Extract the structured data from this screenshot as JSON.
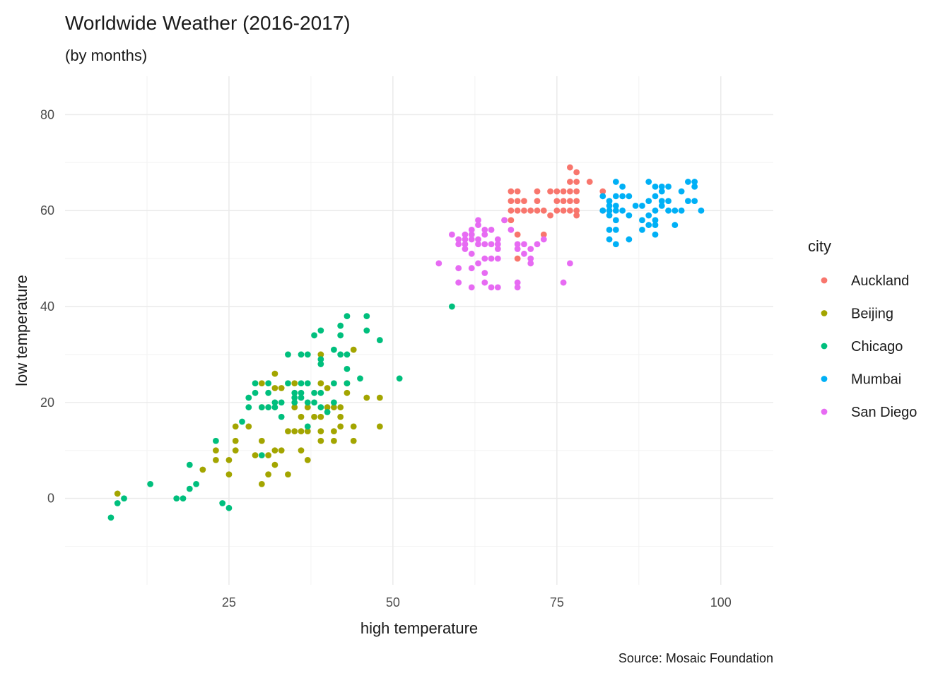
{
  "chart_data": {
    "type": "scatter",
    "title": "Worldwide Weather (2016-2017)",
    "subtitle": "(by months)",
    "caption": "Source: Mosaic Foundation",
    "xlabel": "high temperature",
    "ylabel": "low temperature",
    "xlim": [
      0,
      108
    ],
    "ylim": [
      -18,
      88
    ],
    "xticks": [
      25,
      50,
      75,
      100
    ],
    "yticks": [
      0,
      20,
      40,
      60,
      80
    ],
    "grid": true,
    "legend": {
      "title": "city",
      "position": "right"
    },
    "series": [
      {
        "name": "Auckland",
        "color": "#F8766D",
        "points": [
          [
            68,
            64
          ],
          [
            69,
            64
          ],
          [
            68,
            62
          ],
          [
            69,
            62
          ],
          [
            70,
            62
          ],
          [
            72,
            62
          ],
          [
            75,
            62
          ],
          [
            76,
            62
          ],
          [
            77,
            62
          ],
          [
            78,
            62
          ],
          [
            68,
            60
          ],
          [
            69,
            60
          ],
          [
            70,
            60
          ],
          [
            71,
            60
          ],
          [
            72,
            60
          ],
          [
            73,
            60
          ],
          [
            75,
            60
          ],
          [
            76,
            60
          ],
          [
            77,
            60
          ],
          [
            78,
            60
          ],
          [
            67,
            58
          ],
          [
            68,
            58
          ],
          [
            74,
            59
          ],
          [
            78,
            59
          ],
          [
            69,
            55
          ],
          [
            73,
            55
          ],
          [
            69,
            50
          ],
          [
            72,
            64
          ],
          [
            74,
            64
          ],
          [
            75,
            64
          ],
          [
            77,
            69
          ],
          [
            78,
            68
          ],
          [
            77,
            66
          ],
          [
            78,
            66
          ],
          [
            80,
            66
          ],
          [
            76,
            64
          ],
          [
            77,
            64
          ],
          [
            78,
            64
          ],
          [
            82,
            64
          ],
          [
            82,
            60
          ]
        ]
      },
      {
        "name": "Beijing",
        "color": "#A3A500",
        "points": [
          [
            8,
            1
          ],
          [
            21,
            6
          ],
          [
            23,
            10
          ],
          [
            23,
            8
          ],
          [
            25,
            5
          ],
          [
            25,
            8
          ],
          [
            26,
            10
          ],
          [
            26,
            12
          ],
          [
            26,
            15
          ],
          [
            28,
            15
          ],
          [
            29,
            9
          ],
          [
            30,
            12
          ],
          [
            30,
            19
          ],
          [
            30,
            24
          ],
          [
            30,
            3
          ],
          [
            31,
            5
          ],
          [
            31,
            9
          ],
          [
            32,
            26
          ],
          [
            32,
            23
          ],
          [
            32,
            10
          ],
          [
            32,
            7
          ],
          [
            33,
            10
          ],
          [
            33,
            23
          ],
          [
            34,
            5
          ],
          [
            34,
            14
          ],
          [
            35,
            14
          ],
          [
            35,
            19
          ],
          [
            35,
            24
          ],
          [
            36,
            14
          ],
          [
            36,
            10
          ],
          [
            36,
            17
          ],
          [
            37,
            8
          ],
          [
            37,
            14
          ],
          [
            37,
            19
          ],
          [
            38,
            17
          ],
          [
            39,
            30
          ],
          [
            39,
            24
          ],
          [
            39,
            17
          ],
          [
            39,
            14
          ],
          [
            39,
            12
          ],
          [
            40,
            23
          ],
          [
            40,
            19
          ],
          [
            41,
            12
          ],
          [
            41,
            14
          ],
          [
            41,
            19
          ],
          [
            42,
            19
          ],
          [
            42,
            17
          ],
          [
            42,
            15
          ],
          [
            43,
            22
          ],
          [
            43,
            24
          ],
          [
            44,
            31
          ],
          [
            44,
            12
          ],
          [
            44,
            15
          ],
          [
            46,
            21
          ],
          [
            48,
            21
          ],
          [
            48,
            15
          ]
        ]
      },
      {
        "name": "Chicago",
        "color": "#00BF7D",
        "points": [
          [
            7,
            -4
          ],
          [
            8,
            -1
          ],
          [
            9,
            0
          ],
          [
            13,
            3
          ],
          [
            17,
            0
          ],
          [
            18,
            0
          ],
          [
            19,
            2
          ],
          [
            19,
            7
          ],
          [
            20,
            3
          ],
          [
            23,
            12
          ],
          [
            24,
            -1
          ],
          [
            25,
            -2
          ],
          [
            27,
            16
          ],
          [
            28,
            19
          ],
          [
            28,
            21
          ],
          [
            29,
            22
          ],
          [
            29,
            24
          ],
          [
            30,
            19
          ],
          [
            30,
            9
          ],
          [
            31,
            24
          ],
          [
            31,
            22
          ],
          [
            31,
            19
          ],
          [
            32,
            19
          ],
          [
            32,
            20
          ],
          [
            33,
            20
          ],
          [
            33,
            17
          ],
          [
            34,
            24
          ],
          [
            34,
            30
          ],
          [
            35,
            22
          ],
          [
            35,
            21
          ],
          [
            35,
            20
          ],
          [
            36,
            22
          ],
          [
            36,
            21
          ],
          [
            36,
            24
          ],
          [
            36,
            30
          ],
          [
            37,
            24
          ],
          [
            37,
            30
          ],
          [
            37,
            15
          ],
          [
            38,
            20
          ],
          [
            38,
            22
          ],
          [
            38,
            34
          ],
          [
            39,
            35
          ],
          [
            39,
            29
          ],
          [
            39,
            28
          ],
          [
            39,
            22
          ],
          [
            39,
            19
          ],
          [
            40,
            18
          ],
          [
            41,
            20
          ],
          [
            41,
            24
          ],
          [
            41,
            31
          ],
          [
            42,
            36
          ],
          [
            42,
            34
          ],
          [
            42,
            30
          ],
          [
            43,
            38
          ],
          [
            43,
            30
          ],
          [
            43,
            24
          ],
          [
            43,
            27
          ],
          [
            46,
            38
          ],
          [
            46,
            35
          ],
          [
            48,
            33
          ],
          [
            51,
            25
          ],
          [
            59,
            40
          ],
          [
            45,
            25
          ],
          [
            37,
            20
          ]
        ]
      },
      {
        "name": "Mumbai",
        "color": "#00B0F6",
        "points": [
          [
            82,
            63
          ],
          [
            83,
            62
          ],
          [
            82,
            60
          ],
          [
            83,
            61
          ],
          [
            83,
            60
          ],
          [
            83,
            59
          ],
          [
            84,
            66
          ],
          [
            84,
            63
          ],
          [
            84,
            61
          ],
          [
            84,
            60
          ],
          [
            84,
            58
          ],
          [
            83,
            56
          ],
          [
            83,
            54
          ],
          [
            84,
            53
          ],
          [
            84,
            56
          ],
          [
            85,
            65
          ],
          [
            85,
            63
          ],
          [
            85,
            60
          ],
          [
            86,
            63
          ],
          [
            86,
            54
          ],
          [
            87,
            61
          ],
          [
            88,
            61
          ],
          [
            88,
            58
          ],
          [
            88,
            56
          ],
          [
            89,
            66
          ],
          [
            89,
            62
          ],
          [
            89,
            59
          ],
          [
            89,
            57
          ],
          [
            90,
            65
          ],
          [
            90,
            63
          ],
          [
            90,
            60
          ],
          [
            90,
            58
          ],
          [
            90,
            55
          ],
          [
            91,
            65
          ],
          [
            91,
            64
          ],
          [
            91,
            62
          ],
          [
            91,
            61
          ],
          [
            92,
            65
          ],
          [
            92,
            62
          ],
          [
            92,
            60
          ],
          [
            93,
            60
          ],
          [
            93,
            57
          ],
          [
            94,
            64
          ],
          [
            94,
            60
          ],
          [
            95,
            66
          ],
          [
            95,
            62
          ],
          [
            96,
            66
          ],
          [
            96,
            65
          ],
          [
            96,
            62
          ],
          [
            97,
            60
          ],
          [
            90,
            57
          ],
          [
            86,
            59
          ]
        ]
      },
      {
        "name": "San Diego",
        "color": "#E76BF3",
        "points": [
          [
            57,
            49
          ],
          [
            59,
            55
          ],
          [
            60,
            54
          ],
          [
            60,
            53
          ],
          [
            60,
            48
          ],
          [
            60,
            45
          ],
          [
            61,
            55
          ],
          [
            61,
            54
          ],
          [
            61,
            53
          ],
          [
            61,
            52
          ],
          [
            62,
            56
          ],
          [
            62,
            55
          ],
          [
            62,
            54
          ],
          [
            62,
            51
          ],
          [
            62,
            48
          ],
          [
            62,
            44
          ],
          [
            63,
            58
          ],
          [
            63,
            57
          ],
          [
            63,
            54
          ],
          [
            63,
            53
          ],
          [
            63,
            49
          ],
          [
            64,
            56
          ],
          [
            64,
            55
          ],
          [
            64,
            53
          ],
          [
            64,
            50
          ],
          [
            64,
            47
          ],
          [
            64,
            45
          ],
          [
            65,
            56
          ],
          [
            65,
            53
          ],
          [
            65,
            50
          ],
          [
            65,
            44
          ],
          [
            66,
            54
          ],
          [
            66,
            53
          ],
          [
            66,
            52
          ],
          [
            66,
            50
          ],
          [
            66,
            44
          ],
          [
            67,
            58
          ],
          [
            68,
            56
          ],
          [
            69,
            53
          ],
          [
            69,
            52
          ],
          [
            69,
            45
          ],
          [
            69,
            44
          ],
          [
            70,
            53
          ],
          [
            70,
            51
          ],
          [
            71,
            52
          ],
          [
            71,
            50
          ],
          [
            71,
            49
          ],
          [
            72,
            53
          ],
          [
            73,
            54
          ],
          [
            76,
            45
          ],
          [
            77,
            49
          ]
        ]
      }
    ]
  }
}
